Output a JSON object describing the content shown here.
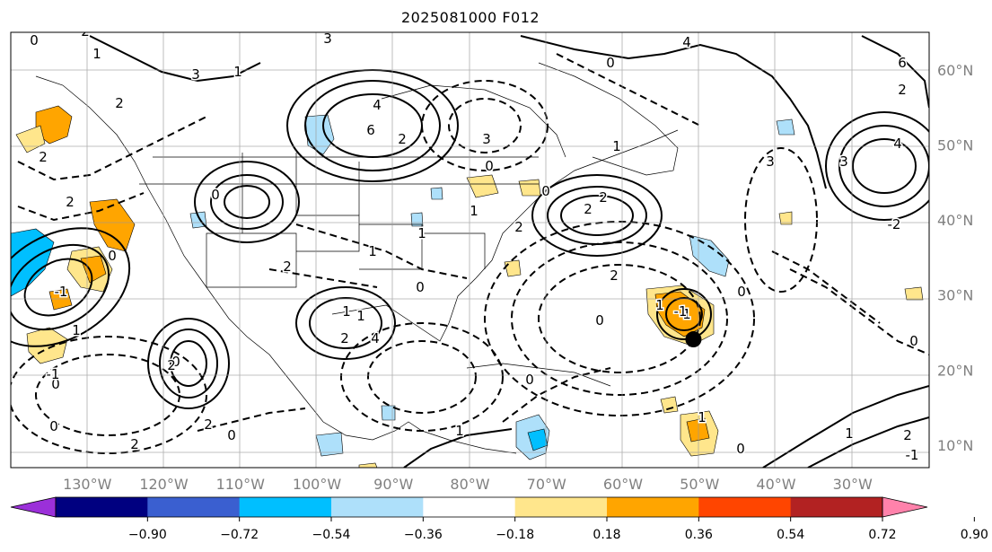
{
  "title": "2025081000 F012",
  "map": {
    "lon_labels": [
      "130°W",
      "120°W",
      "110°W",
      "100°W",
      "90°W",
      "80°W",
      "70°W",
      "60°W",
      "50°W",
      "40°W",
      "30°W"
    ],
    "lat_labels": [
      "60°N",
      "50°N",
      "40°N",
      "30°N",
      "20°N",
      "10°N"
    ],
    "lon_range": [
      -140,
      -20
    ],
    "lat_range": [
      7,
      65
    ],
    "tick_color": "#808080",
    "contour_labels": [
      "0",
      "2",
      "3",
      "1",
      "3",
      "4",
      "6",
      "4",
      "0",
      "2",
      "1",
      "2",
      "6",
      "2",
      "3",
      "3",
      "0",
      "2",
      "4",
      "3",
      "-2",
      "2",
      "1",
      "0",
      "2",
      "-1",
      "0",
      "1",
      "0",
      "1",
      "1",
      "2",
      "4",
      "0",
      "2",
      "2",
      "2",
      "1",
      "0",
      "2",
      "0",
      "1",
      "1",
      "-1",
      "0",
      "1",
      "0",
      "1",
      "2",
      "-1",
      "0",
      "2",
      "1",
      "0",
      "1",
      "0",
      "0",
      "2",
      "2",
      "1",
      "0",
      "-1"
    ],
    "marker": {
      "lon": -50.8,
      "lat": 24.1,
      "color": "#000000"
    }
  },
  "colorbar": {
    "ticks": [
      "−0.90",
      "−0.72",
      "−0.54",
      "−0.36",
      "−0.18",
      "0.18",
      "0.36",
      "0.54",
      "0.72",
      "0.90"
    ],
    "colors": [
      "#9b30d9",
      "#000080",
      "#3a5fd0",
      "#00bfff",
      "#aee0fa",
      "#ffffff",
      "#ffe68c",
      "#ffa500",
      "#ff4500",
      "#b22222",
      "#ff82ab"
    ]
  }
}
